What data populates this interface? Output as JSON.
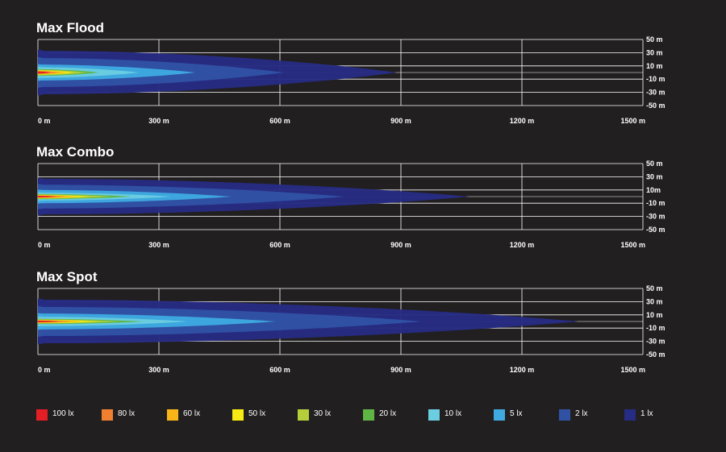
{
  "chart_data": [
    {
      "type": "heatmap",
      "title": "Max Flood",
      "x_ticks": [
        "0 m",
        "300 m",
        "600 m",
        "900 m",
        "1200 m",
        "1500 m"
      ],
      "x_tick_values": [
        0,
        300,
        600,
        900,
        1200,
        1500
      ],
      "y_ticks": [
        "50 m",
        "30 m",
        "10 m",
        "-10 m",
        "-30 m",
        "-50 m"
      ],
      "y_tick_values": [
        50,
        30,
        10,
        -10,
        -30,
        -50
      ],
      "xlim": [
        0,
        1500
      ],
      "ylim": [
        -50,
        50
      ],
      "grid": true,
      "contours": [
        {
          "level": "1 lx",
          "reach": 890,
          "width": 33
        },
        {
          "level": "2 lx",
          "reach": 610,
          "width": 22
        },
        {
          "level": "5 lx",
          "reach": 390,
          "width": 12
        },
        {
          "level": "10 lx",
          "reach": 250,
          "width": 8
        },
        {
          "level": "20 lx",
          "reach": 150,
          "width": 5
        },
        {
          "level": "30 lx",
          "reach": 120,
          "width": 4
        },
        {
          "level": "50 lx",
          "reach": 90,
          "width": 3
        },
        {
          "level": "60 lx",
          "reach": 70,
          "width": 2.5
        },
        {
          "level": "80 lx",
          "reach": 50,
          "width": 2
        },
        {
          "level": "100 lx",
          "reach": 30,
          "width": 1.5
        }
      ]
    },
    {
      "type": "heatmap",
      "title": "Max Combo",
      "x_ticks": [
        "0 m",
        "300 m",
        "600 m",
        "900 m",
        "1200 m",
        "1500 m"
      ],
      "x_tick_values": [
        0,
        300,
        600,
        900,
        1200,
        1500
      ],
      "y_ticks": [
        "50 m",
        "30 m",
        "10m",
        "-10 m",
        "-30 m",
        "-50 m"
      ],
      "y_tick_values": [
        50,
        30,
        10,
        -10,
        -30,
        -50
      ],
      "xlim": [
        0,
        1500
      ],
      "ylim": [
        -50,
        50
      ],
      "grid": true,
      "contours": [
        {
          "level": "1 lx",
          "reach": 1070,
          "width": 27
        },
        {
          "level": "2 lx",
          "reach": 760,
          "width": 18
        },
        {
          "level": "5 lx",
          "reach": 480,
          "width": 10
        },
        {
          "level": "10 lx",
          "reach": 330,
          "width": 6
        },
        {
          "level": "20 lx",
          "reach": 230,
          "width": 4
        },
        {
          "level": "30 lx",
          "reach": 180,
          "width": 3
        },
        {
          "level": "50 lx",
          "reach": 130,
          "width": 2.5
        },
        {
          "level": "60 lx",
          "reach": 100,
          "width": 2
        },
        {
          "level": "80 lx",
          "reach": 70,
          "width": 1.5
        },
        {
          "level": "100 lx",
          "reach": 45,
          "width": 1.2
        }
      ]
    },
    {
      "type": "heatmap",
      "title": "Max Spot",
      "x_ticks": [
        "0 m",
        "300 m",
        "600 m",
        "900 m",
        "1200 m",
        "1500 m"
      ],
      "x_tick_values": [
        0,
        300,
        600,
        900,
        1200,
        1500
      ],
      "y_ticks": [
        "50 m",
        "30 m",
        "10 m",
        "-10 m",
        "-30 m",
        "-50 m"
      ],
      "y_tick_values": [
        50,
        30,
        10,
        -10,
        -30,
        -50
      ],
      "xlim": [
        0,
        1500
      ],
      "ylim": [
        -50,
        50
      ],
      "grid": true,
      "contours": [
        {
          "level": "1 lx",
          "reach": 1340,
          "width": 33
        },
        {
          "level": "2 lx",
          "reach": 950,
          "width": 22
        },
        {
          "level": "5 lx",
          "reach": 590,
          "width": 12
        },
        {
          "level": "10 lx",
          "reach": 370,
          "width": 7
        },
        {
          "level": "20 lx",
          "reach": 260,
          "width": 4
        },
        {
          "level": "30 lx",
          "reach": 200,
          "width": 3
        },
        {
          "level": "50 lx",
          "reach": 150,
          "width": 2.5
        },
        {
          "level": "60 lx",
          "reach": 110,
          "width": 2
        },
        {
          "level": "80 lx",
          "reach": 80,
          "width": 1.5
        },
        {
          "level": "100 lx",
          "reach": 50,
          "width": 1.2
        }
      ]
    }
  ],
  "legend": [
    {
      "label": "100 lx",
      "color": "#e31e24"
    },
    {
      "label": "80 lx",
      "color": "#f08030"
    },
    {
      "label": "60 lx",
      "color": "#f9b417"
    },
    {
      "label": "50 lx",
      "color": "#f6e914"
    },
    {
      "label": "30 lx",
      "color": "#b5cf3a"
    },
    {
      "label": "20 lx",
      "color": "#5fb645"
    },
    {
      "label": "10 lx",
      "color": "#6acde0"
    },
    {
      "label": "5 lx",
      "color": "#3fa9e0"
    },
    {
      "label": "2 lx",
      "color": "#3152a4"
    },
    {
      "label": "1 lx",
      "color": "#262b83"
    }
  ]
}
